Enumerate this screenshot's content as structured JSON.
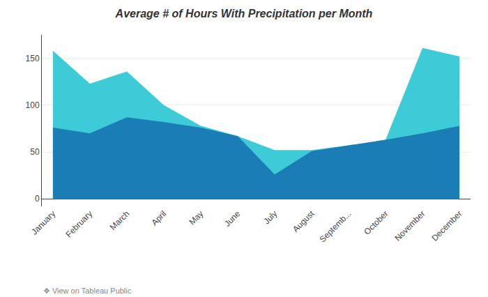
{
  "chart_data": {
    "type": "area",
    "title": "Average # of Hours With Precipitation per Month",
    "categories": [
      "January",
      "February",
      "March",
      "April",
      "May",
      "June",
      "July",
      "August",
      "Septemb...",
      "October",
      "November",
      "December"
    ],
    "series": [
      {
        "color": "#3ecbd8",
        "values": [
          158,
          123,
          136,
          100,
          78,
          67,
          52,
          52,
          57,
          63,
          161,
          152
        ]
      },
      {
        "color": "#1a7db5",
        "values": [
          76,
          70,
          87,
          82,
          76,
          67,
          26,
          51,
          57,
          63,
          70,
          78
        ]
      }
    ],
    "ylim": [
      -8,
      175
    ],
    "yticks": [
      0,
      50,
      100,
      150
    ],
    "grid": true,
    "annotations": [
      "❖ View on Tableau Public"
    ]
  }
}
